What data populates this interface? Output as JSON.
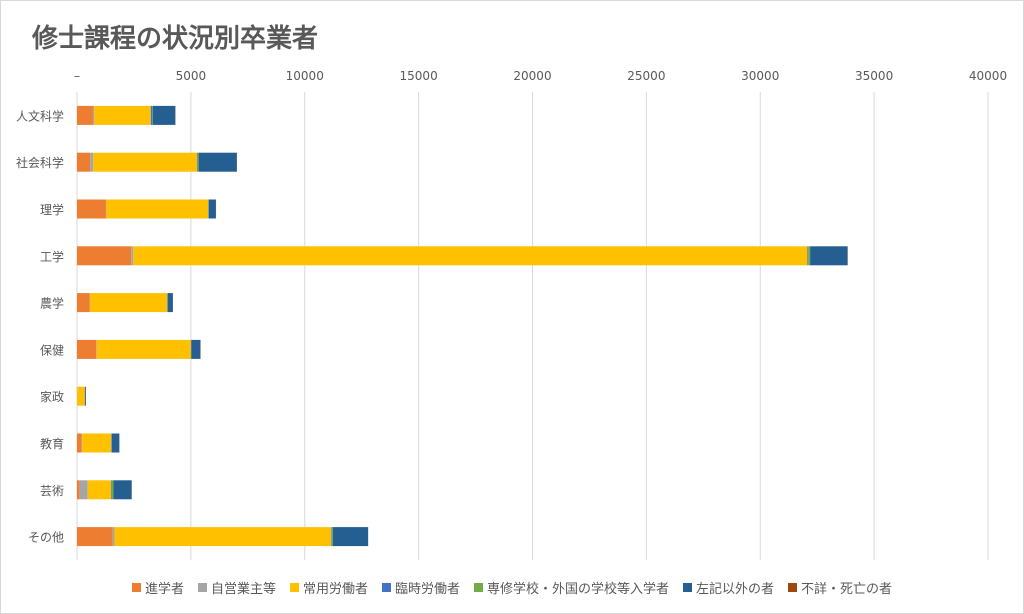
{
  "chart_data": {
    "type": "bar",
    "orientation": "horizontal",
    "stacked": true,
    "title": "修士課程の状況別卒業者",
    "xlabel": "",
    "ylabel": "",
    "xlim": [
      0,
      40000
    ],
    "xticks": [
      0,
      5000,
      10000,
      15000,
      20000,
      25000,
      30000,
      35000,
      40000
    ],
    "xtick_labels": [
      "–",
      "5000",
      "10000",
      "15000",
      "20000",
      "25000",
      "30000",
      "35000",
      "40000"
    ],
    "grid": true,
    "legend_position": "bottom",
    "categories": [
      "人文科学",
      "社会科学",
      "理学",
      "工学",
      "農学",
      "保健",
      "家政",
      "教育",
      "芸術",
      "その他"
    ],
    "series": [
      {
        "name": "進学者",
        "color": "#ED7D31",
        "values": [
          700,
          580,
          1270,
          2380,
          560,
          850,
          0,
          210,
          120,
          1570
        ]
      },
      {
        "name": "自営業主等",
        "color": "#A5A5A5",
        "values": [
          60,
          130,
          20,
          90,
          10,
          20,
          5,
          20,
          350,
          80
        ]
      },
      {
        "name": "常用労働者",
        "color": "#FFC000",
        "values": [
          2480,
          4560,
          4470,
          29600,
          3390,
          4130,
          340,
          1270,
          1020,
          9510
        ]
      },
      {
        "name": "臨時労働者",
        "color": "#4472C4",
        "values": [
          60,
          30,
          20,
          40,
          10,
          10,
          5,
          20,
          30,
          30
        ]
      },
      {
        "name": "専修学校・外国の学校等入学者",
        "color": "#70AD47",
        "values": [
          20,
          40,
          10,
          80,
          10,
          10,
          0,
          10,
          80,
          40
        ]
      },
      {
        "name": "左記以外の者",
        "color": "#255E91",
        "values": [
          1000,
          1680,
          310,
          1640,
          230,
          400,
          40,
          330,
          800,
          1550
        ]
      },
      {
        "name": "不詳・死亡の者",
        "color": "#9E480E",
        "values": [
          5,
          5,
          5,
          10,
          5,
          5,
          0,
          5,
          5,
          5
        ]
      }
    ]
  }
}
